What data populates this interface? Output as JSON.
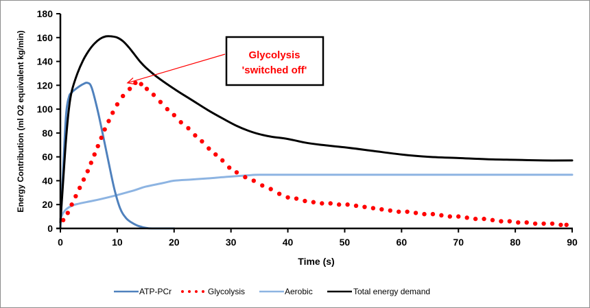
{
  "chart_data": {
    "type": "line",
    "title": "",
    "xlabel": "Time (s)",
    "ylabel": "Energy Contribution  (ml O2 equivalent kg/min)",
    "xlim": [
      0,
      90
    ],
    "ylim": [
      0,
      180
    ],
    "x_ticks": [
      0,
      10,
      20,
      30,
      40,
      50,
      60,
      70,
      80,
      90
    ],
    "y_ticks": [
      0,
      20,
      40,
      60,
      80,
      100,
      120,
      140,
      160,
      180
    ],
    "grid": false,
    "legend_position": "bottom",
    "series": [
      {
        "name": "ATP-PCr",
        "color": "#4f81bd",
        "style": "solid",
        "x": [
          0,
          0.5,
          1,
          1.5,
          2,
          3,
          4,
          4.8,
          5.5,
          6.5,
          7.5,
          8.5,
          9.5,
          10.5,
          11.5,
          12.5,
          13.5,
          14.5,
          15.5,
          17,
          20
        ],
        "y": [
          0,
          50,
          95,
          110,
          114,
          118,
          121,
          122,
          118,
          100,
          78,
          55,
          33,
          17,
          9,
          5,
          2.5,
          1,
          0.2,
          0,
          0
        ]
      },
      {
        "name": "Glycolysis",
        "color": "#ff0000",
        "style": "dotted",
        "x": [
          0,
          0.5,
          1.3,
          2.0,
          2.7,
          3.4,
          4.1,
          4.8,
          5.4,
          6.0,
          6.6,
          7.2,
          7.8,
          8.5,
          9.2,
          10.0,
          11.0,
          12.2,
          13.2,
          14.2,
          15.2,
          16.4,
          17.6,
          18.8,
          20.0,
          21.2,
          22.5,
          23.7,
          24.9,
          26.1,
          27.3,
          28.5,
          29.7,
          31.0,
          32.5,
          34.0,
          35.5,
          37.0,
          38.5,
          40.0,
          41.5,
          43.0,
          44.5,
          46.0,
          47.5,
          49.0,
          50.5,
          52.0,
          53.5,
          55.0,
          56.5,
          58.0,
          59.5,
          61.0,
          62.5,
          64.0,
          65.5,
          67.0,
          68.5,
          70.0,
          71.5,
          73.0,
          74.5,
          76.0,
          77.5,
          79.0,
          80.5,
          82.0,
          83.5,
          85.0,
          86.5,
          88.0,
          89.0
        ],
        "y": [
          0,
          7,
          13,
          20,
          27,
          34,
          41,
          48,
          55,
          62,
          69,
          76,
          83,
          90,
          97,
          104,
          111,
          117,
          122,
          121,
          117,
          112,
          106,
          100,
          95,
          89,
          84,
          78,
          73,
          67,
          62,
          57,
          51,
          47,
          43,
          40,
          36,
          33,
          29,
          26,
          25,
          23,
          22,
          21,
          21,
          20,
          20,
          19,
          18,
          17,
          16,
          15,
          14,
          14,
          13,
          12,
          12,
          11,
          10,
          10,
          9,
          8,
          8,
          7,
          6,
          6,
          5,
          5,
          4,
          4,
          4,
          3,
          3
        ]
      },
      {
        "name": "Aerobic",
        "color": "#8db4e2",
        "style": "solid",
        "x": [
          0,
          0.5,
          1,
          2,
          3,
          5,
          7,
          10,
          13,
          15,
          18,
          20,
          23,
          26,
          30,
          33,
          35,
          40,
          50,
          60,
          70,
          80,
          90
        ],
        "y": [
          8,
          13,
          16,
          19,
          20.5,
          22.5,
          24.5,
          28,
          32,
          35,
          38,
          40,
          41,
          42,
          43.5,
          44.5,
          45,
          45,
          45,
          45,
          45,
          45,
          45
        ]
      },
      {
        "name": "Total energy demand",
        "color": "#000000",
        "style": "solid",
        "x": [
          0,
          0.5,
          1,
          1.5,
          2,
          3,
          4,
          5,
          6,
          7,
          8,
          9,
          10,
          11,
          12,
          13,
          14,
          15,
          17,
          20,
          23,
          26,
          29,
          31,
          33,
          35,
          37,
          40,
          43,
          46,
          50,
          55,
          60,
          65,
          70,
          75,
          80,
          85,
          90
        ],
        "y": [
          5,
          40,
          75,
          100,
          115,
          130,
          141,
          149,
          155,
          159,
          161,
          161,
          160,
          157,
          152,
          146,
          140,
          135,
          127,
          117,
          108,
          99,
          91,
          86,
          82,
          79,
          77,
          75,
          72,
          70,
          68,
          65,
          62,
          60,
          59,
          58,
          57.5,
          57,
          57
        ]
      }
    ],
    "annotations": [
      {
        "text_line1": "Glycolysis",
        "text_line2": "'switched off'",
        "color": "#ff0000",
        "arrow_to": [
          11.8,
          122
        ]
      }
    ]
  }
}
